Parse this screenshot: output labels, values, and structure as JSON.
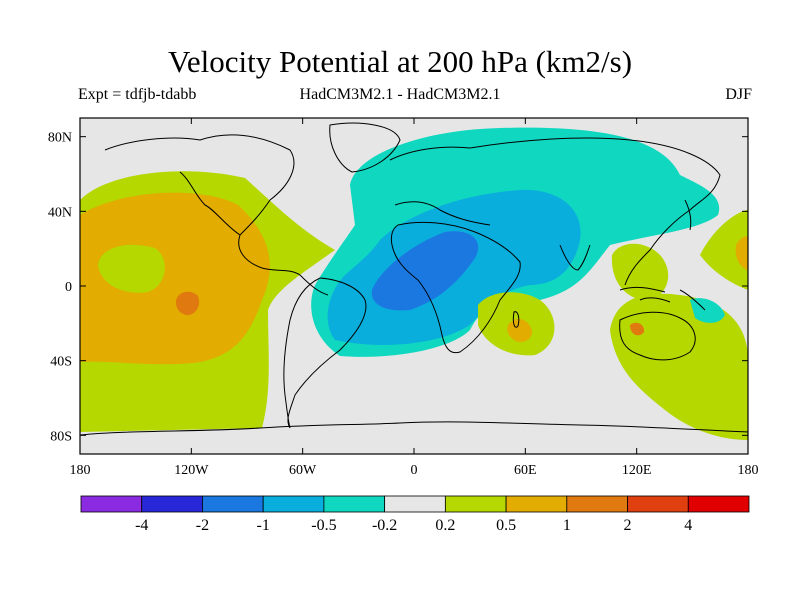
{
  "title": "Velocity Potential at 200 hPa (km2/s)",
  "subtitle_left": "Expt = tdfjb-tdabb",
  "subtitle_center": "HadCM3M2.1 - HadCM3M2.1",
  "subtitle_right": "DJF",
  "map": {
    "projection": "equirectangular",
    "lon_range": [
      -180,
      180
    ],
    "lat_range": [
      -90,
      90
    ],
    "lon_ticks": [
      "180",
      "120W",
      "60W",
      "0",
      "60E",
      "120E",
      "180"
    ],
    "lat_ticks": [
      "80N",
      "40N",
      "0",
      "40S",
      "80S"
    ],
    "coastlines": true
  },
  "colorbar": {
    "colors": [
      "#8a2be2",
      "#2828d8",
      "#1a78e0",
      "#0aaedc",
      "#10d8c0",
      "#e6e6e6",
      "#b4d800",
      "#e2ac00",
      "#e07a10",
      "#e04010",
      "#e00000"
    ],
    "labels": [
      "-4",
      "-2",
      "-1",
      "-0.5",
      "-0.2",
      "0.2",
      "0.5",
      "1",
      "2",
      "4"
    ]
  }
}
